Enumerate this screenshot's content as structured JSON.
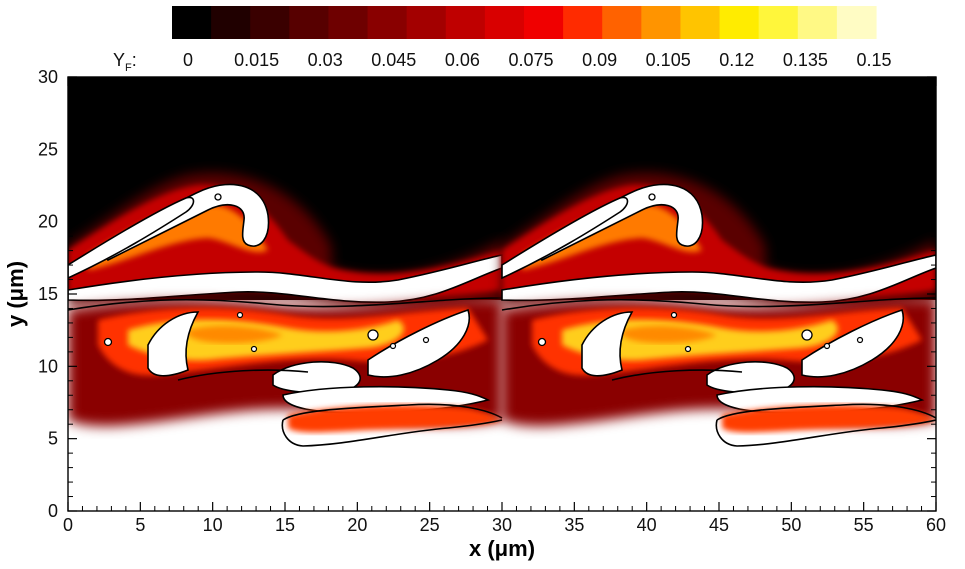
{
  "chart_data": {
    "type": "heatmap",
    "colorbar": {
      "label": "Y",
      "label_subscript": "F",
      "label_suffix": ":",
      "ticks": [
        "0",
        "0.015",
        "0.03",
        "0.045",
        "0.06",
        "0.075",
        "0.09",
        "0.105",
        "0.12",
        "0.135",
        "0.15"
      ],
      "min": 0,
      "max": 0.15,
      "colors": [
        "#000000",
        "#200000",
        "#3a0000",
        "#570000",
        "#6e0000",
        "#890000",
        "#a30000",
        "#bf0000",
        "#d90000",
        "#f00000",
        "#ff2b00",
        "#ff6200",
        "#ff9400",
        "#ffc400",
        "#ffec00",
        "#fff63b",
        "#fff985",
        "#fffcc4"
      ]
    },
    "x_axis": {
      "label": "x",
      "unit": "μm",
      "range": [
        0,
        60
      ],
      "ticks": [
        "0",
        "5",
        "10",
        "15",
        "20",
        "25",
        "30",
        "35",
        "40",
        "45",
        "50",
        "55",
        "60"
      ]
    },
    "y_axis": {
      "label": "y",
      "unit": "μm",
      "range": [
        0,
        30
      ],
      "ticks": [
        "0",
        "5",
        "10",
        "15",
        "20",
        "25",
        "30"
      ]
    },
    "fields": {
      "background_top": "#000000",
      "background_bottom": "#ffffff",
      "contour_color": "#000000"
    }
  }
}
